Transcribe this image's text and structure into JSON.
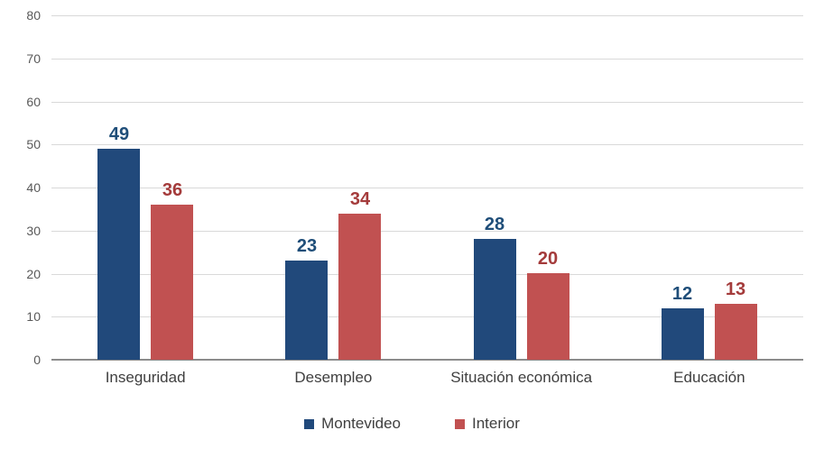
{
  "chart_data": {
    "type": "bar",
    "categories": [
      "Inseguridad",
      "Desempleo",
      "Situación económica",
      "Educación"
    ],
    "series": [
      {
        "name": "Montevideo",
        "values": [
          49,
          23,
          28,
          12
        ],
        "color": "#21497B",
        "label_color": "#1F4E79"
      },
      {
        "name": "Interior",
        "values": [
          36,
          34,
          20,
          13
        ],
        "color": "#C15151",
        "label_color": "#A43B3B"
      }
    ],
    "title": "",
    "xlabel": "",
    "ylabel": "",
    "ylim": [
      0,
      80
    ],
    "ytick_step": 10,
    "yticks": [
      0,
      10,
      20,
      30,
      40,
      50,
      60,
      70,
      80
    ],
    "grid": true,
    "legend_position": "bottom",
    "colors": {
      "gridline": "#d9d9d9",
      "baseline": "#8c8c8c",
      "tick_label": "#595959",
      "category_label": "#3f3f3f",
      "legend_label": "#404040"
    }
  }
}
